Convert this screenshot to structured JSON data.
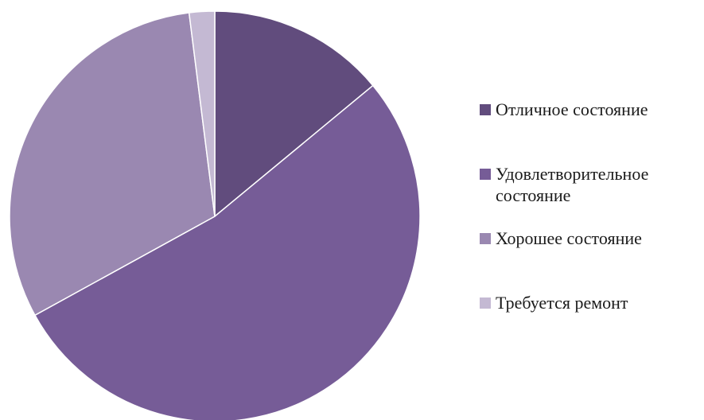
{
  "chart_data": {
    "type": "pie",
    "title": "",
    "start_angle_deg": 0,
    "direction": "clockwise",
    "legend_position": "right",
    "series": [
      {
        "name": "Отличное состояние",
        "value": 14,
        "color": "#614c7d"
      },
      {
        "name": "Удовлетворительное состояние",
        "value": 53,
        "color": "#765c97"
      },
      {
        "name": "Хорошее состояние",
        "value": 31,
        "color": "#9a88b1"
      },
      {
        "name": "Требуется ремонт",
        "value": 2,
        "color": "#c4b9d3"
      }
    ]
  }
}
